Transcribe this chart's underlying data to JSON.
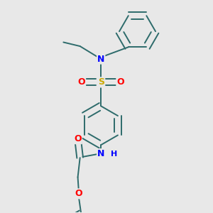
{
  "background_color": "#e8e8e8",
  "bond_color": "#2d6b6b",
  "atom_colors": {
    "N": "#0000ff",
    "O": "#ff0000",
    "S": "#ccaa00",
    "C": "#2d6b6b",
    "H": "#2d6b6b"
  },
  "bond_width": 1.4,
  "figsize": [
    3.0,
    3.0
  ],
  "dpi": 100
}
